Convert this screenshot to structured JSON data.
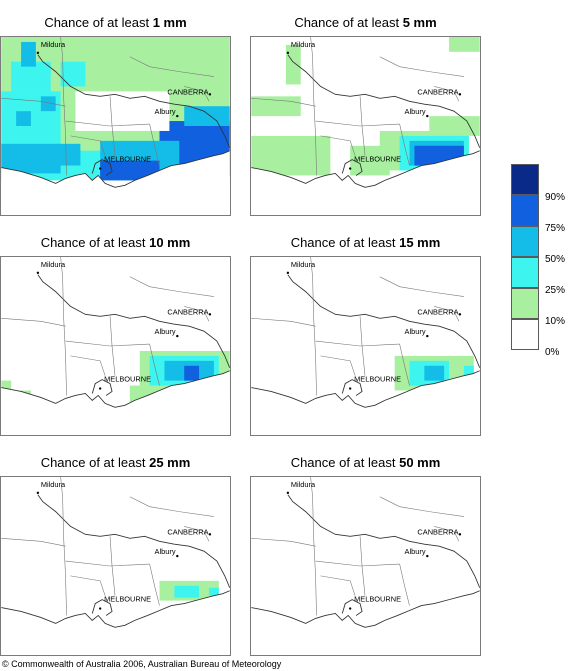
{
  "panels": [
    {
      "prefix": "Chance of at least ",
      "amount": "1 mm",
      "level": 1
    },
    {
      "prefix": "Chance of at least ",
      "amount": "5 mm",
      "level": 2
    },
    {
      "prefix": "Chance of at least ",
      "amount": "10 mm",
      "level": 3
    },
    {
      "prefix": "Chance of at least ",
      "amount": "15 mm",
      "level": 4
    },
    {
      "prefix": "Chance of at least ",
      "amount": "25 mm",
      "level": 5
    },
    {
      "prefix": "Chance of at least ",
      "amount": "50 mm",
      "level": 6
    }
  ],
  "cities": {
    "mildura": "Mildura",
    "canberra": "CANBERRA",
    "albury": "Albury",
    "melbourne": "MELBOURNE"
  },
  "legend": {
    "labels": [
      "90%",
      "75%",
      "50%",
      "25%",
      "10%",
      "0%"
    ],
    "colors": [
      "#0a2a8a",
      "#1060e0",
      "#14bde8",
      "#3df5ee",
      "#a8f0a0",
      "#ffffff"
    ]
  },
  "copyright": "© Commonwealth of Australia 2006, Australian Bureau of Meteorology"
}
